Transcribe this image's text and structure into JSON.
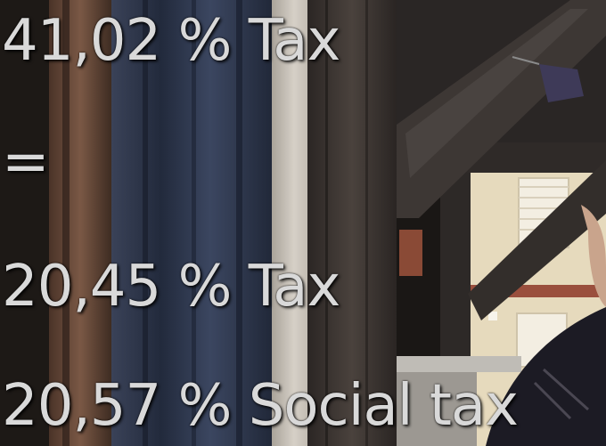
{
  "caption": {
    "line_1": "41,02 % Tax",
    "line_2": "=",
    "line_3": "20,45 % Tax",
    "line_4": "20,57 % Social tax"
  },
  "colors": {
    "caption_text": "#d9d9d9",
    "window_frame": "#6b4b3a",
    "curtain": "#2a3346",
    "wall": "#cfcac2",
    "beam": "#3b3532",
    "facade": "#e8dcc0",
    "jacket": "#1c1b24"
  }
}
